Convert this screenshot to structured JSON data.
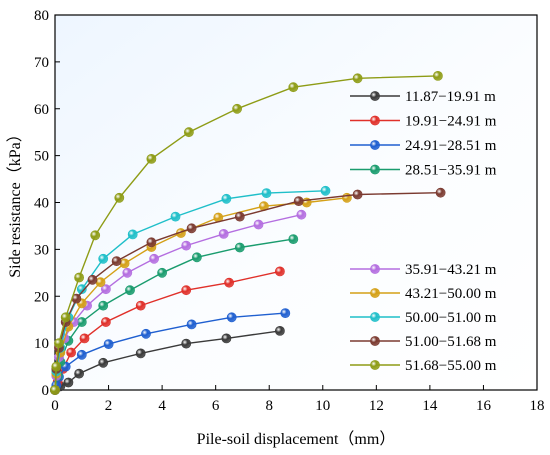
{
  "chart_data": {
    "type": "line",
    "title": "",
    "xlabel": "Pile-soil displacement（mm）",
    "ylabel": "Side resistance（kPa）",
    "xlim": [
      0,
      18
    ],
    "ylim": [
      0,
      80
    ],
    "xticks": [
      "0",
      "2",
      "4",
      "6",
      "8",
      "10",
      "12",
      "14",
      "16",
      "18"
    ],
    "yticks": [
      "0",
      "10",
      "20",
      "30",
      "40",
      "50",
      "60",
      "70",
      "80"
    ],
    "grid": false,
    "legend_placement": "right, two groups",
    "series": [
      {
        "name": "11.87−19.91 m",
        "color": "#3a3a3a",
        "group": 1,
        "x": [
          0,
          0.2,
          0.5,
          0.9,
          1.8,
          3.2,
          4.9,
          6.4,
          8.4
        ],
        "y": [
          0,
          0.8,
          1.6,
          3.5,
          5.8,
          7.8,
          9.9,
          11.0,
          12.6
        ]
      },
      {
        "name": "19.91−24.91 m",
        "color": "#e0302a",
        "group": 1,
        "x": [
          0,
          0.1,
          0.3,
          0.6,
          1.1,
          1.9,
          3.2,
          4.9,
          6.5,
          8.4
        ],
        "y": [
          0,
          1.8,
          4.5,
          8.0,
          11.0,
          14.5,
          18.0,
          21.3,
          22.9,
          25.3
        ]
      },
      {
        "name": "24.91−28.51 m",
        "color": "#1f5fd0",
        "group": 1,
        "x": [
          0,
          0.05,
          0.15,
          0.4,
          1.0,
          2.0,
          3.4,
          5.1,
          6.6,
          8.6
        ],
        "y": [
          0,
          1.0,
          2.8,
          5.0,
          7.5,
          9.8,
          12.0,
          14.0,
          15.5,
          16.4
        ]
      },
      {
        "name": "28.51−35.91 m",
        "color": "#1a9c6e",
        "group": 1,
        "x": [
          0,
          0.1,
          0.2,
          0.5,
          1.0,
          1.8,
          2.8,
          4.0,
          5.3,
          6.9,
          8.9
        ],
        "y": [
          0,
          3.0,
          6.0,
          10.5,
          14.5,
          18.0,
          21.3,
          25.0,
          28.3,
          30.4,
          32.2
        ]
      },
      {
        "name": "35.91−43.21 m",
        "color": "#b46ee0",
        "group": 2,
        "x": [
          0,
          0.05,
          0.15,
          0.35,
          0.7,
          1.2,
          1.9,
          2.7,
          3.7,
          4.9,
          6.3,
          7.6,
          9.2
        ],
        "y": [
          0,
          3.0,
          7.0,
          11.0,
          14.5,
          18.0,
          21.5,
          25.0,
          28.0,
          30.8,
          33.3,
          35.3,
          37.4
        ]
      },
      {
        "name": "43.21−50.00 m",
        "color": "#d4a017",
        "group": 2,
        "x": [
          0,
          0.05,
          0.2,
          0.5,
          1.0,
          1.7,
          2.6,
          3.6,
          4.7,
          6.1,
          7.8,
          9.4,
          10.9
        ],
        "y": [
          0,
          3.5,
          8.0,
          13.5,
          18.5,
          23.0,
          27.0,
          30.5,
          33.5,
          36.8,
          39.2,
          40.0,
          41.0
        ]
      },
      {
        "name": "50.00−51.00 m",
        "color": "#1fbfc9",
        "group": 2,
        "x": [
          0,
          0.05,
          0.2,
          0.5,
          1.0,
          1.8,
          2.9,
          4.5,
          6.4,
          7.9,
          10.1
        ],
        "y": [
          0,
          4.0,
          9.0,
          15.5,
          21.5,
          28.0,
          33.2,
          37.0,
          40.8,
          42.0,
          42.5
        ]
      },
      {
        "name": "51.00−51.68 m",
        "color": "#7b3a30",
        "group": 2,
        "x": [
          0,
          0.05,
          0.15,
          0.4,
          0.8,
          1.4,
          2.3,
          3.6,
          5.1,
          6.9,
          9.1,
          11.3,
          14.4
        ],
        "y": [
          0,
          4.5,
          9.0,
          14.5,
          19.5,
          23.5,
          27.5,
          31.5,
          34.5,
          37.0,
          40.3,
          41.7,
          42.1
        ]
      },
      {
        "name": "51.68−55.00 m",
        "color": "#8e9c16",
        "group": 2,
        "x": [
          0,
          0.05,
          0.15,
          0.4,
          0.9,
          1.5,
          2.4,
          3.6,
          5.0,
          6.8,
          8.9,
          11.3,
          14.3
        ],
        "y": [
          0,
          5.0,
          10.0,
          15.5,
          24.0,
          33.0,
          41.0,
          49.3,
          55.0,
          60.0,
          64.6,
          66.5,
          67.0
        ]
      }
    ]
  }
}
